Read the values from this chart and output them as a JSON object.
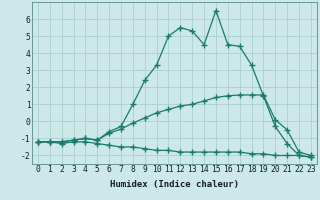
{
  "xlabel": "Humidex (Indice chaleur)",
  "x": [
    0,
    1,
    2,
    3,
    4,
    5,
    6,
    7,
    8,
    9,
    10,
    11,
    12,
    13,
    14,
    15,
    16,
    17,
    18,
    19,
    20,
    21,
    22,
    23
  ],
  "line_top": [
    -1.2,
    -1.2,
    -1.2,
    -1.1,
    -1.0,
    -1.1,
    -0.6,
    -0.3,
    1.0,
    2.4,
    3.3,
    5.0,
    5.5,
    5.3,
    4.5,
    6.5,
    4.5,
    4.4,
    3.3,
    1.5,
    -0.3,
    -1.3,
    -2.0,
    -2.1
  ],
  "line_mid": [
    -1.2,
    -1.2,
    -1.2,
    -1.1,
    -1.0,
    -1.1,
    -0.7,
    -0.45,
    -0.1,
    0.2,
    0.5,
    0.7,
    0.9,
    1.0,
    1.2,
    1.4,
    1.5,
    1.55,
    1.55,
    1.55,
    0.1,
    -0.5,
    -1.8,
    -2.0
  ],
  "line_bot": [
    -1.2,
    -1.2,
    -1.3,
    -1.2,
    -1.2,
    -1.3,
    -1.4,
    -1.5,
    -1.5,
    -1.6,
    -1.7,
    -1.7,
    -1.8,
    -1.8,
    -1.8,
    -1.8,
    -1.8,
    -1.8,
    -1.9,
    -1.9,
    -2.0,
    -2.0,
    -2.0,
    -2.1
  ],
  "line_color": "#1a7a6e",
  "bg_color": "#cce8e8",
  "grid_color": "#aacfcf",
  "marker": "+",
  "markersize": 4.0,
  "linewidth": 0.9,
  "xlim": [
    -0.5,
    23.5
  ],
  "ylim": [
    -2.5,
    7.0
  ],
  "yticks": [
    -2,
    -1,
    0,
    1,
    2,
    3,
    4,
    5,
    6
  ],
  "xticks": [
    0,
    1,
    2,
    3,
    4,
    5,
    6,
    7,
    8,
    9,
    10,
    11,
    12,
    13,
    14,
    15,
    16,
    17,
    18,
    19,
    20,
    21,
    22,
    23
  ],
  "fontsize_label": 6.5,
  "fontsize_tick": 5.8
}
